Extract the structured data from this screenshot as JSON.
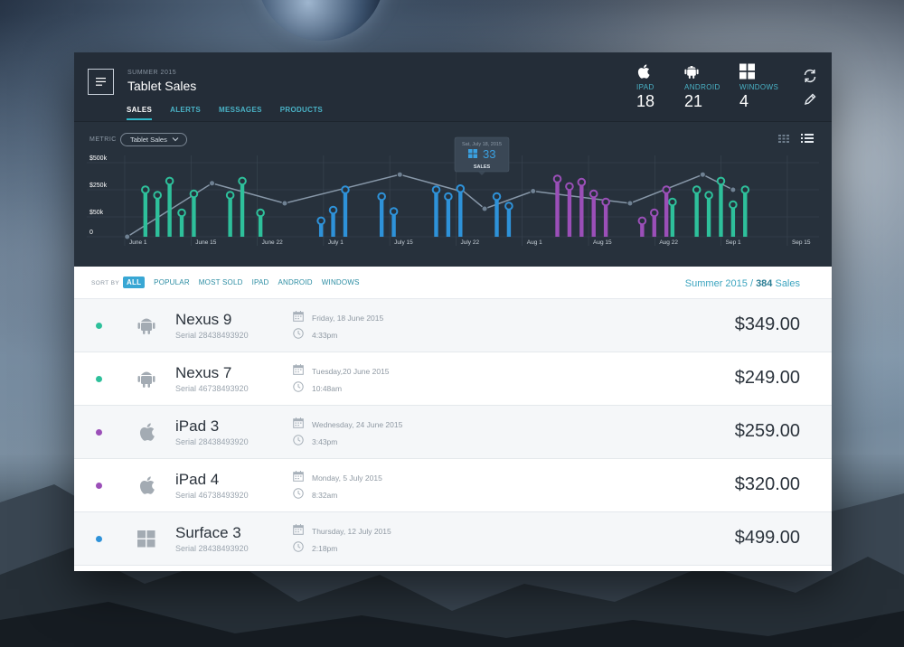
{
  "header": {
    "subtitle": "SUMMER 2015",
    "title": "Tablet Sales",
    "tabs": [
      {
        "label": "SALES",
        "active": true
      },
      {
        "label": "ALERTS",
        "active": false
      },
      {
        "label": "MESSAGES",
        "active": false
      },
      {
        "label": "PRODUCTS",
        "active": false
      }
    ],
    "platforms": [
      {
        "icon": "apple-icon",
        "label": "IPAD",
        "count": "18"
      },
      {
        "icon": "android-icon",
        "label": "ANDROID",
        "count": "21"
      },
      {
        "icon": "windows-icon",
        "label": "WINDOWS",
        "count": "4"
      }
    ],
    "actions": [
      "refresh-icon",
      "pencil-icon"
    ]
  },
  "metric": {
    "label": "METRIC",
    "selected": "Tablet Sales"
  },
  "colors": {
    "android": "#2ec09b",
    "ipad": "#9b4fb8",
    "windows": "#2e92d9",
    "line": "#8797a8"
  },
  "chart_data": {
    "type": "bar",
    "ytick_labels": [
      "$500k",
      "$250k",
      "$50k",
      "0"
    ],
    "yticks": [
      500,
      250,
      50,
      0
    ],
    "ylim": [
      0,
      500
    ],
    "xtick_labels": [
      "June 1",
      "June 15",
      "June 22",
      "July 1",
      "July 15",
      "July 22",
      "Aug 1",
      "Aug 15",
      "Aug 22",
      "Sep 1",
      "Sep 15"
    ],
    "xlim": [
      "2015-05-28",
      "2015-09-19"
    ],
    "grid": true,
    "series": [
      {
        "platform": "android",
        "x": [
          "2015-06-01",
          "2015-06-03",
          "2015-06-05",
          "2015-06-07",
          "2015-06-09",
          "2015-06-15",
          "2015-06-17",
          "2015-06-20",
          "2015-08-27",
          "2015-08-31",
          "2015-09-02",
          "2015-09-04",
          "2015-09-06",
          "2015-09-08"
        ],
        "values": [
          250,
          210,
          330,
          80,
          220,
          210,
          330,
          80,
          160,
          250,
          210,
          330,
          140,
          250
        ]
      },
      {
        "platform": "ipad",
        "x": [
          "2015-08-08",
          "2015-08-10",
          "2015-08-12",
          "2015-08-14",
          "2015-08-16",
          "2015-08-22",
          "2015-08-24",
          "2015-08-26"
        ],
        "values": [
          350,
          280,
          320,
          220,
          160,
          40,
          80,
          250
        ]
      },
      {
        "platform": "windows",
        "x": [
          "2015-06-30",
          "2015-07-02",
          "2015-07-04",
          "2015-07-10",
          "2015-07-12",
          "2015-07-19",
          "2015-07-21",
          "2015-07-23",
          "2015-07-29",
          "2015-07-31"
        ],
        "values": [
          40,
          100,
          250,
          200,
          90,
          250,
          200,
          260,
          200,
          130
        ]
      },
      {
        "type": "line",
        "x": [
          "2015-05-29",
          "2015-06-12",
          "2015-06-24",
          "2015-07-13",
          "2015-07-23",
          "2015-07-23",
          "2015-07-27",
          "2015-08-04",
          "2015-08-20",
          "2015-09-01",
          "2015-09-06"
        ],
        "values": [
          0,
          310,
          150,
          390,
          240,
          260,
          110,
          240,
          150,
          390,
          250
        ]
      }
    ],
    "tooltip": {
      "date": "Sat, July 18, 2015",
      "icon": "windows-icon",
      "value": "33",
      "label": "SALES",
      "anchor_x": "2015-07-23"
    }
  },
  "sortbar": {
    "label": "SORT BY",
    "options": [
      "ALL",
      "POPULAR",
      "MOST SOLD",
      "IPAD",
      "ANDROID",
      "WINDOWS"
    ],
    "active": "ALL",
    "summary_period": "Summer 2015",
    "summary_separator": " / ",
    "summary_count": "384",
    "summary_suffix": " Sales"
  },
  "rows": [
    {
      "platform": "android",
      "icon": "android-icon",
      "name": "Nexus 9",
      "serial": "Serial 28438493920",
      "date": "Friday, 18 June 2015",
      "time": "4:33pm",
      "price": "$349.00"
    },
    {
      "platform": "android",
      "icon": "android-icon",
      "name": "Nexus 7",
      "serial": "Serial 46738493920",
      "date": "Tuesday,20 June 2015",
      "time": "10:48am",
      "price": "$249.00"
    },
    {
      "platform": "ipad",
      "icon": "apple-icon",
      "name": "iPad 3",
      "serial": "Serial 28438493920",
      "date": "Wednesday, 24 June 2015",
      "time": "3:43pm",
      "price": "$259.00"
    },
    {
      "platform": "ipad",
      "icon": "apple-icon",
      "name": "iPad 4",
      "serial": "Serial 46738493920",
      "date": "Monday, 5 July 2015",
      "time": "8:32am",
      "price": "$320.00"
    },
    {
      "platform": "windows",
      "icon": "windows-icon",
      "name": "Surface 3",
      "serial": "Serial 28438493920",
      "date": "Thursday, 12 July 2015",
      "time": "2:18pm",
      "price": "$499.00"
    }
  ]
}
